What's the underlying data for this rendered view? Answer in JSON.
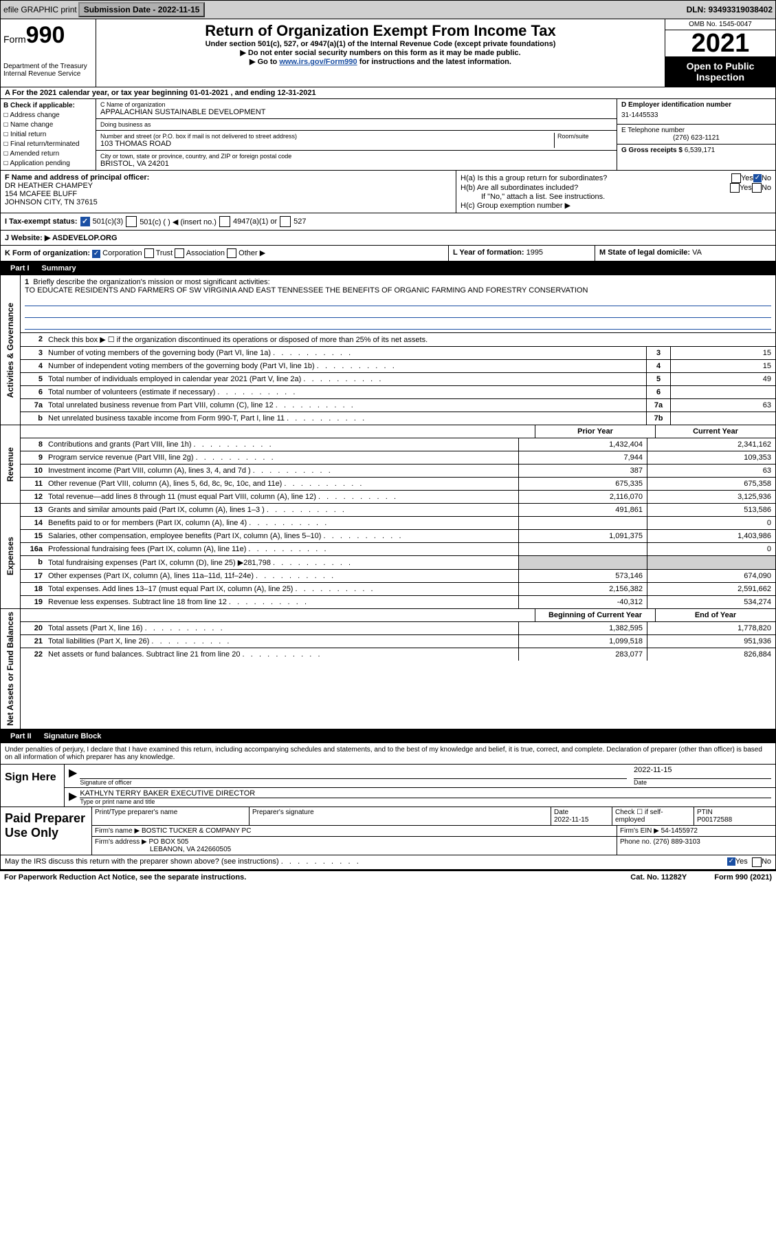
{
  "topbar": {
    "efile": "efile GRAPHIC print",
    "submission_label": "Submission Date - 2022-11-15",
    "dln": "DLN: 93493319038402"
  },
  "header": {
    "form_label": "Form",
    "form_num": "990",
    "title": "Return of Organization Exempt From Income Tax",
    "sub1": "Under section 501(c), 527, or 4947(a)(1) of the Internal Revenue Code (except private foundations)",
    "sub2": "▶ Do not enter social security numbers on this form as it may be made public.",
    "sub3_a": "▶ Go to ",
    "sub3_link": "www.irs.gov/Form990",
    "sub3_b": " for instructions and the latest information.",
    "dept": "Department of the Treasury",
    "irs": "Internal Revenue Service",
    "omb": "OMB No. 1545-0047",
    "year": "2021",
    "inspection": "Open to Public Inspection"
  },
  "rowA": "A  For the 2021 calendar year, or tax year beginning 01-01-2021   , and ending 12-31-2021",
  "secB": {
    "label": "B Check if applicable:",
    "opts": [
      "Address change",
      "Name change",
      "Initial return",
      "Final return/terminated",
      "Amended return",
      "Application pending"
    ]
  },
  "secC": {
    "name_label": "C Name of organization",
    "name": "APPALACHIAN SUSTAINABLE DEVELOPMENT",
    "dba_label": "Doing business as",
    "dba": "",
    "street_label": "Number and street (or P.O. box if mail is not delivered to street address)",
    "room_label": "Room/suite",
    "street": "103 THOMAS ROAD",
    "city_label": "City or town, state or province, country, and ZIP or foreign postal code",
    "city": "BRISTOL, VA  24201"
  },
  "secD": {
    "ein_label": "D Employer identification number",
    "ein": "31-1445533",
    "phone_label": "E Telephone number",
    "phone": "(276) 623-1121",
    "gross_label": "G Gross receipts $",
    "gross": "6,539,171"
  },
  "secF": {
    "label": "F  Name and address of principal officer:",
    "name": "DR HEATHER CHAMPEY",
    "addr1": "154 MCAFEE BLUFF",
    "addr2": "JOHNSON CITY, TN  37615"
  },
  "secH": {
    "a": "H(a)  Is this a group return for subordinates?",
    "b": "H(b)  Are all subordinates included?",
    "note": "If \"No,\" attach a list. See instructions.",
    "c": "H(c)  Group exemption number ▶",
    "yes": "Yes",
    "no": "No"
  },
  "secI": {
    "label": "I  Tax-exempt status:",
    "o1": "501(c)(3)",
    "o2": "501(c) (  ) ◀ (insert no.)",
    "o3": "4947(a)(1) or",
    "o4": "527"
  },
  "secJ": {
    "label": "J  Website: ▶",
    "val": "ASDEVELOP.ORG"
  },
  "secK": {
    "k": "K Form of organization:",
    "corp": "Corporation",
    "trust": "Trust",
    "assoc": "Association",
    "other": "Other ▶",
    "l_label": "L Year of formation:",
    "l_val": "1995",
    "m_label": "M State of legal domicile:",
    "m_val": "VA"
  },
  "part1": {
    "label": "Part I",
    "title": "Summary",
    "vtab_ag": "Activities & Governance",
    "vtab_rev": "Revenue",
    "vtab_exp": "Expenses",
    "vtab_net": "Net Assets or Fund Balances",
    "line1_label": "Briefly describe the organization's mission or most significant activities:",
    "line1_text": "TO EDUCATE RESIDENTS AND FARMERS OF SW VIRGINIA AND EAST TENNESSEE THE BENEFITS OF ORGANIC FARMING AND FORESTRY CONSERVATION",
    "line2": "Check this box ▶ ☐  if the organization discontinued its operations or disposed of more than 25% of its net assets.",
    "rows_ag": [
      {
        "n": "3",
        "d": "Number of voting members of the governing body (Part VI, line 1a)",
        "box": "3",
        "v": "15"
      },
      {
        "n": "4",
        "d": "Number of independent voting members of the governing body (Part VI, line 1b)",
        "box": "4",
        "v": "15"
      },
      {
        "n": "5",
        "d": "Total number of individuals employed in calendar year 2021 (Part V, line 2a)",
        "box": "5",
        "v": "49"
      },
      {
        "n": "6",
        "d": "Total number of volunteers (estimate if necessary)",
        "box": "6",
        "v": ""
      },
      {
        "n": "7a",
        "d": "Total unrelated business revenue from Part VIII, column (C), line 12",
        "box": "7a",
        "v": "63"
      },
      {
        "n": "b",
        "d": "Net unrelated business taxable income from Form 990-T, Part I, line 11",
        "box": "7b",
        "v": ""
      }
    ],
    "hdr_prior": "Prior Year",
    "hdr_curr": "Current Year",
    "rows_rev": [
      {
        "n": "8",
        "d": "Contributions and grants (Part VIII, line 1h)",
        "p": "1,432,404",
        "c": "2,341,162"
      },
      {
        "n": "9",
        "d": "Program service revenue (Part VIII, line 2g)",
        "p": "7,944",
        "c": "109,353"
      },
      {
        "n": "10",
        "d": "Investment income (Part VIII, column (A), lines 3, 4, and 7d )",
        "p": "387",
        "c": "63"
      },
      {
        "n": "11",
        "d": "Other revenue (Part VIII, column (A), lines 5, 6d, 8c, 9c, 10c, and 11e)",
        "p": "675,335",
        "c": "675,358"
      },
      {
        "n": "12",
        "d": "Total revenue—add lines 8 through 11 (must equal Part VIII, column (A), line 12)",
        "p": "2,116,070",
        "c": "3,125,936"
      }
    ],
    "rows_exp": [
      {
        "n": "13",
        "d": "Grants and similar amounts paid (Part IX, column (A), lines 1–3 )",
        "p": "491,861",
        "c": "513,586"
      },
      {
        "n": "14",
        "d": "Benefits paid to or for members (Part IX, column (A), line 4)",
        "p": "",
        "c": "0"
      },
      {
        "n": "15",
        "d": "Salaries, other compensation, employee benefits (Part IX, column (A), lines 5–10)",
        "p": "1,091,375",
        "c": "1,403,986"
      },
      {
        "n": "16a",
        "d": "Professional fundraising fees (Part IX, column (A), line 11e)",
        "p": "",
        "c": "0"
      },
      {
        "n": "b",
        "d": "Total fundraising expenses (Part IX, column (D), line 25) ▶281,798",
        "p": "grey",
        "c": "grey"
      },
      {
        "n": "17",
        "d": "Other expenses (Part IX, column (A), lines 11a–11d, 11f–24e)",
        "p": "573,146",
        "c": "674,090"
      },
      {
        "n": "18",
        "d": "Total expenses. Add lines 13–17 (must equal Part IX, column (A), line 25)",
        "p": "2,156,382",
        "c": "2,591,662"
      },
      {
        "n": "19",
        "d": "Revenue less expenses. Subtract line 18 from line 12",
        "p": "-40,312",
        "c": "534,274"
      }
    ],
    "hdr_beg": "Beginning of Current Year",
    "hdr_end": "End of Year",
    "rows_net": [
      {
        "n": "20",
        "d": "Total assets (Part X, line 16)",
        "p": "1,382,595",
        "c": "1,778,820"
      },
      {
        "n": "21",
        "d": "Total liabilities (Part X, line 26)",
        "p": "1,099,518",
        "c": "951,936"
      },
      {
        "n": "22",
        "d": "Net assets or fund balances. Subtract line 21 from line 20",
        "p": "283,077",
        "c": "826,884"
      }
    ]
  },
  "part2": {
    "label": "Part II",
    "title": "Signature Block",
    "text": "Under penalties of perjury, I declare that I have examined this return, including accompanying schedules and statements, and to the best of my knowledge and belief, it is true, correct, and complete. Declaration of preparer (other than officer) is based on all information of which preparer has any knowledge.",
    "sign_here": "Sign Here",
    "sig_officer": "Signature of officer",
    "sig_date": "2022-11-15",
    "date_lbl": "Date",
    "typed": "KATHLYN TERRY BAKER  EXECUTIVE DIRECTOR",
    "typed_lbl": "Type or print name and title",
    "paid_lbl": "Paid Preparer Use Only",
    "pp_name_lbl": "Print/Type preparer's name",
    "pp_sig_lbl": "Preparer's signature",
    "pp_date_lbl": "Date",
    "pp_date": "2022-11-15",
    "pp_check_lbl": "Check ☐ if self-employed",
    "ptin_lbl": "PTIN",
    "ptin": "P00172588",
    "firm_name_lbl": "Firm's name   ▶",
    "firm_name": "BOSTIC TUCKER & COMPANY PC",
    "firm_ein_lbl": "Firm's EIN ▶",
    "firm_ein": "54-1455972",
    "firm_addr_lbl": "Firm's address ▶",
    "firm_addr": "PO BOX 505",
    "firm_addr2": "LEBANON, VA  242660505",
    "firm_phone_lbl": "Phone no.",
    "firm_phone": "(276) 889-3103",
    "may_irs": "May the IRS discuss this return with the preparer shown above? (see instructions)",
    "yes": "Yes",
    "no": "No"
  },
  "footer": {
    "left": "For Paperwork Reduction Act Notice, see the separate instructions.",
    "mid": "Cat. No. 11282Y",
    "right": "Form 990 (2021)"
  }
}
